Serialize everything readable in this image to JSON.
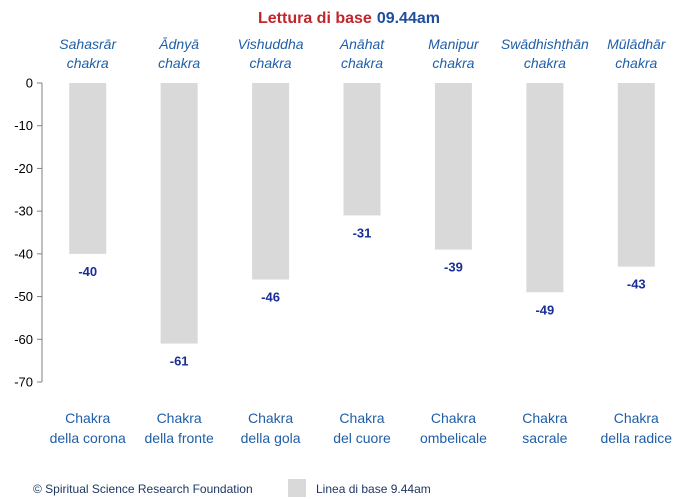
{
  "chart_data": {
    "type": "bar",
    "title_part1": "Lettura di base",
    "title_part2": "09.44am",
    "top_labels": [
      [
        "Sahasrār",
        "chakra"
      ],
      [
        "Ādnyā",
        "chakra"
      ],
      [
        "Vishuddha",
        "chakra"
      ],
      [
        "Anāhat",
        "chakra"
      ],
      [
        "Manipur",
        "chakra"
      ],
      [
        "Swādhishṭhān",
        "chakra"
      ],
      [
        "Mūlādhār",
        "chakra"
      ]
    ],
    "categories": [
      [
        "Chakra",
        "della corona"
      ],
      [
        "Chakra",
        "della fronte"
      ],
      [
        "Chakra",
        "della gola"
      ],
      [
        "Chakra",
        "del cuore"
      ],
      [
        "Chakra",
        "ombelicale"
      ],
      [
        "Chakra",
        "sacrale"
      ],
      [
        "Chakra",
        "della radice"
      ]
    ],
    "series": [
      {
        "name": "Linea di base 9.44am",
        "values": [
          -40,
          -61,
          -46,
          -31,
          -39,
          -49,
          -43
        ],
        "color": "#d9d9d9"
      }
    ],
    "data_labels": [
      "-40",
      "-61",
      "-46",
      "-31",
      "-39",
      "-49",
      "-43"
    ],
    "ylim": [
      -70,
      0
    ],
    "yticks": [
      0,
      -10,
      -20,
      -30,
      -40,
      -50,
      -60,
      -70
    ],
    "ytick_labels": [
      "0",
      "-10",
      "-20",
      "-30",
      "-40",
      "-50",
      "-60",
      "-70"
    ],
    "grid": false,
    "legend_position": "bottom"
  },
  "footer": {
    "copyright": "© Spiritual Science Research Foundation"
  },
  "colors": {
    "bar": "#d9d9d9",
    "title_red": "#c0272d",
    "title_blue": "#1f4e9c",
    "label_blue": "#1f5ea8",
    "data_label": "#1a2e9a"
  }
}
